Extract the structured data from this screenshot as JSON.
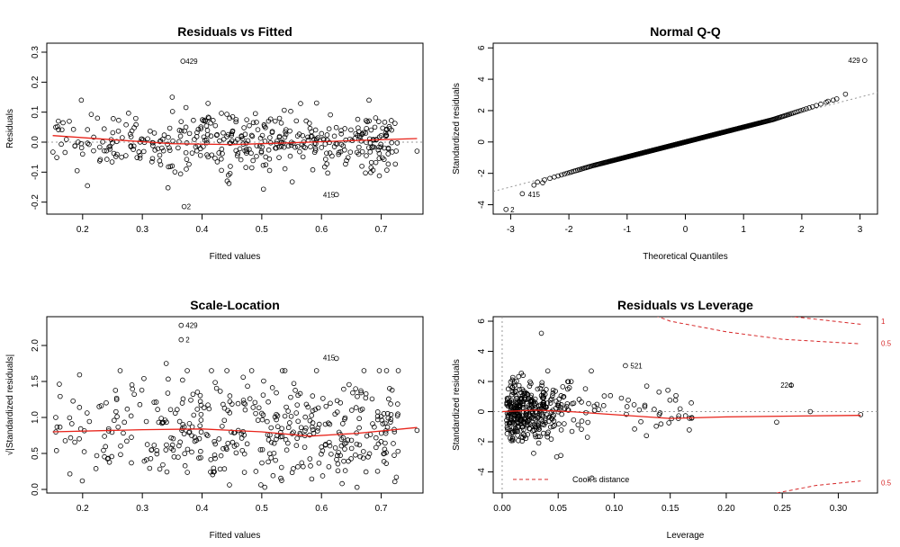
{
  "figure": {
    "background": "#ffffff",
    "point_color": "#000000",
    "smooth_color": "#e8231a",
    "reference_color": "#999999",
    "cook_color": "#d62728"
  },
  "chart_data": [
    {
      "id": "rvf",
      "type": "scatter",
      "title": "Residuals vs Fitted",
      "xlabel": "Fitted values",
      "ylabel": "Residuals",
      "xlim": [
        0.14,
        0.77
      ],
      "ylim": [
        -0.24,
        0.33
      ],
      "xticks": [
        "0.2",
        "0.3",
        "0.4",
        "0.5",
        "0.6",
        "0.7"
      ],
      "yticks": [
        "-0.2",
        "-0.1",
        "0.0",
        "0.1",
        "0.2",
        "0.3"
      ],
      "reference_line": {
        "y": 0
      },
      "smooth": [
        [
          0.15,
          0.022
        ],
        [
          0.25,
          0.008
        ],
        [
          0.35,
          -0.005
        ],
        [
          0.45,
          -0.008
        ],
        [
          0.55,
          -0.002
        ],
        [
          0.65,
          0.005
        ],
        [
          0.76,
          0.012
        ]
      ],
      "annotations": [
        {
          "label": "429",
          "x": 0.368,
          "y": 0.27
        },
        {
          "label": "2",
          "x": 0.37,
          "y": -0.215
        },
        {
          "label": "415",
          "x": 0.598,
          "y": -0.175
        }
      ],
      "highlighted_points": [
        [
          0.368,
          0.27
        ],
        [
          0.37,
          -0.215
        ],
        [
          0.625,
          -0.175
        ],
        [
          0.35,
          0.15
        ],
        [
          0.76,
          -0.03
        ],
        [
          0.155,
          0.05
        ]
      ],
      "cloud": {
        "x_range": [
          0.15,
          0.73
        ],
        "y_sd": 0.055,
        "count": 430
      }
    },
    {
      "id": "qq",
      "type": "scatter",
      "title": "Normal Q-Q",
      "xlabel": "Theoretical Quantiles",
      "ylabel": "Standardized residuals",
      "xlim": [
        -3.3,
        3.3
      ],
      "ylim": [
        -4.6,
        6.3
      ],
      "xticks": [
        "-3",
        "-2",
        "-1",
        "0",
        "1",
        "2",
        "3"
      ],
      "yticks": [
        "-4",
        "-2",
        "0",
        "2",
        "4",
        "6"
      ],
      "reference_line": {
        "from": [
          -3.3,
          -3.15
        ],
        "to": [
          3.3,
          3.15
        ]
      },
      "annotations": [
        {
          "label": "429",
          "x": 2.75,
          "y": 5.2
        },
        {
          "label": "415",
          "x": -2.75,
          "y": -3.35
        },
        {
          "label": "2",
          "x": -3.05,
          "y": -4.3
        }
      ],
      "tail_points": [
        [
          3.08,
          5.2
        ],
        [
          -3.08,
          -4.3
        ],
        [
          -2.8,
          -3.3
        ],
        [
          2.75,
          3.05
        ],
        [
          -2.6,
          -2.75
        ],
        [
          2.6,
          2.75
        ],
        [
          -2.45,
          -2.6
        ],
        [
          2.45,
          2.6
        ]
      ],
      "count": 450
    },
    {
      "id": "sl",
      "type": "scatter",
      "title": "Scale-Location",
      "xlabel": "Fitted values",
      "ylabel": "√|Standardized residuals|",
      "xlim": [
        0.14,
        0.77
      ],
      "ylim": [
        -0.05,
        2.4
      ],
      "xticks": [
        "0.2",
        "0.3",
        "0.4",
        "0.5",
        "0.6",
        "0.7"
      ],
      "yticks": [
        "0.0",
        "0.5",
        "1.0",
        "1.5",
        "2.0"
      ],
      "smooth": [
        [
          0.15,
          0.8
        ],
        [
          0.3,
          0.83
        ],
        [
          0.4,
          0.84
        ],
        [
          0.5,
          0.8
        ],
        [
          0.58,
          0.74
        ],
        [
          0.66,
          0.78
        ],
        [
          0.76,
          0.86
        ]
      ],
      "annotations": [
        {
          "label": "429",
          "x": 0.368,
          "y": 2.28
        },
        {
          "label": "2",
          "x": 0.368,
          "y": 2.08
        },
        {
          "label": "415",
          "x": 0.598,
          "y": 1.83
        }
      ],
      "highlighted_points": [
        [
          0.365,
          2.28
        ],
        [
          0.365,
          2.08
        ],
        [
          0.625,
          1.82
        ],
        [
          0.34,
          1.75
        ],
        [
          0.76,
          0.82
        ],
        [
          0.155,
          1.0
        ]
      ],
      "cloud": {
        "x_range": [
          0.15,
          0.73
        ],
        "y_mean": 0.82,
        "y_sd": 0.38,
        "count": 430
      }
    },
    {
      "id": "rvl",
      "type": "scatter",
      "title": "Residuals vs Leverage",
      "xlabel": "Leverage",
      "ylabel": "Standardized residuals",
      "xlim": [
        -0.008,
        0.335
      ],
      "ylim": [
        -5.4,
        6.3
      ],
      "xticks": [
        "0.00",
        "0.05",
        "0.10",
        "0.15",
        "0.20",
        "0.25",
        "0.30"
      ],
      "yticks": [
        "-4",
        "-2",
        "0",
        "2",
        "4",
        "6"
      ],
      "reference_line": {
        "y": 0
      },
      "smooth": [
        [
          0.0,
          0.0
        ],
        [
          0.03,
          0.1
        ],
        [
          0.06,
          0.0
        ],
        [
          0.1,
          -0.2
        ],
        [
          0.15,
          -0.45
        ],
        [
          0.2,
          -0.35
        ],
        [
          0.25,
          -0.3
        ],
        [
          0.32,
          -0.25
        ]
      ],
      "annotations": [
        {
          "label": "521",
          "x": 0.112,
          "y": 3.05
        },
        {
          "label": "224",
          "x": 0.246,
          "y": 1.75
        }
      ],
      "cook_contours": [
        {
          "label": "1",
          "points": [
            [
              0.12,
              9.0
            ],
            [
              0.2,
              7.0
            ],
            [
              0.26,
              6.3
            ],
            [
              0.32,
              5.8
            ]
          ]
        },
        {
          "label": "0.5",
          "points": [
            [
              0.1,
              7.4
            ],
            [
              0.15,
              6.0
            ],
            [
              0.2,
              5.3
            ],
            [
              0.25,
              4.8
            ],
            [
              0.32,
              4.5
            ]
          ]
        },
        {
          "label": "0.5",
          "points": [
            [
              0.245,
              -5.4
            ],
            [
              0.28,
              -4.9
            ],
            [
              0.32,
              -4.6
            ]
          ]
        }
      ],
      "highlighted_points": [
        [
          0.035,
          5.2
        ],
        [
          0.11,
          3.05
        ],
        [
          0.258,
          1.75
        ],
        [
          0.32,
          -0.2
        ],
        [
          0.245,
          -0.7
        ],
        [
          0.275,
          0.0
        ],
        [
          0.14,
          1.3
        ],
        [
          0.08,
          -4.4
        ]
      ],
      "legend": {
        "label": "Cook's distance",
        "position": "bottom-left"
      },
      "cloud": {
        "count": 420
      }
    }
  ]
}
